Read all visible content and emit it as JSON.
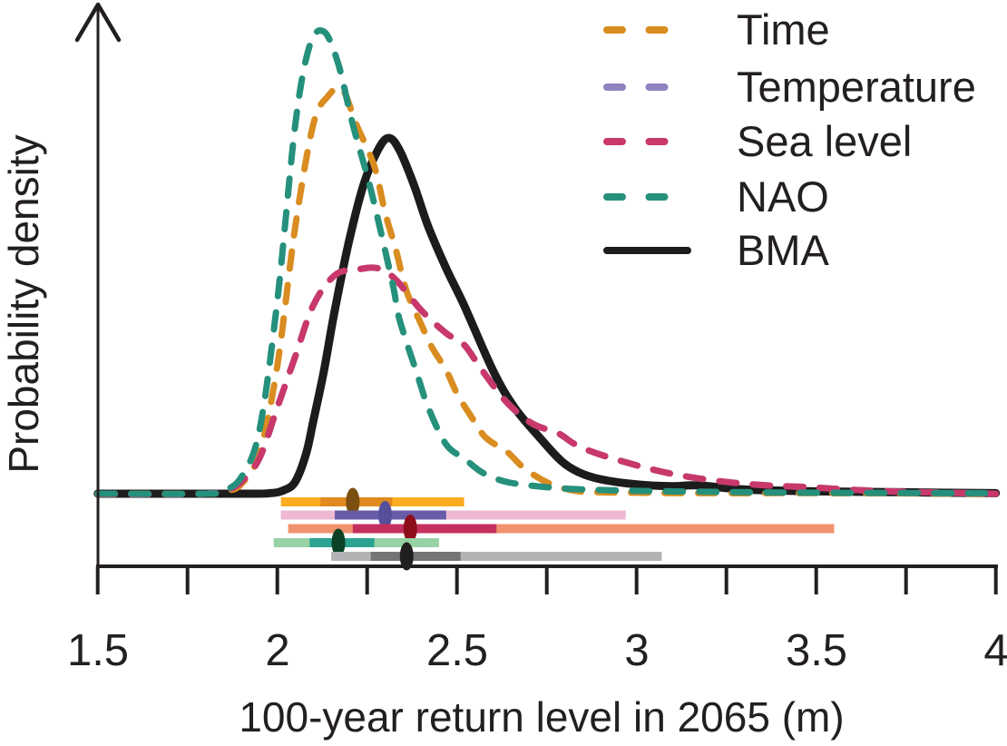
{
  "figure": {
    "title": "",
    "xlabel": "100-year return level in 2065 (m)",
    "ylabel": "Probability density",
    "x_tick_labels": [
      "1.5",
      "2",
      "2.5",
      "3",
      "3.5",
      "4"
    ]
  },
  "legend": {
    "position": "top-right",
    "items": [
      {
        "label": "Time",
        "color": "#D98C20",
        "style": "dashed"
      },
      {
        "label": "Temperature",
        "color": "#9083BF",
        "style": "dashed"
      },
      {
        "label": "Sea level",
        "color": "#C8386B",
        "style": "dashed"
      },
      {
        "label": "NAO",
        "color": "#25907C",
        "style": "dashed"
      },
      {
        "label": "BMA",
        "color": "#1C1C1C",
        "style": "solid"
      }
    ]
  },
  "chart_data": {
    "type": "line",
    "title": "",
    "xlabel": "100-year return level in 2065 (m)",
    "ylabel": "Probability density",
    "xlim": [
      1.5,
      4.0
    ],
    "x_major_ticks": [
      1.5,
      2.0,
      2.5,
      3.0,
      3.5,
      4.0
    ],
    "x_minor_tick_step": 0.25,
    "y_axis_style": "unlabeled arrow axis, densities normalized to tallest peak = 1",
    "grid": false,
    "legend_position": "top-right inside plot",
    "draw_order": [
      "BMA",
      "Time",
      "Temperature",
      "Sea level",
      "NAO"
    ],
    "series": [
      {
        "name": "Time",
        "color": "#D98C20",
        "line_style": "dashed",
        "hidden": false,
        "points": [
          [
            1.5,
            0.004
          ],
          [
            1.8,
            0.004
          ],
          [
            1.86,
            0.01
          ],
          [
            1.9,
            0.025
          ],
          [
            1.95,
            0.09
          ],
          [
            2.0,
            0.28
          ],
          [
            2.05,
            0.58
          ],
          [
            2.1,
            0.8
          ],
          [
            2.14,
            0.86
          ],
          [
            2.18,
            0.877
          ],
          [
            2.22,
            0.8
          ],
          [
            2.27,
            0.71
          ],
          [
            2.3,
            0.61
          ],
          [
            2.33,
            0.53
          ],
          [
            2.36,
            0.44
          ],
          [
            2.4,
            0.37
          ],
          [
            2.43,
            0.32
          ],
          [
            2.47,
            0.27
          ],
          [
            2.5,
            0.22
          ],
          [
            2.54,
            0.17
          ],
          [
            2.58,
            0.125
          ],
          [
            2.64,
            0.094
          ],
          [
            2.69,
            0.057
          ],
          [
            2.76,
            0.025
          ],
          [
            2.83,
            0.01
          ],
          [
            2.9,
            0.007
          ],
          [
            3.0,
            0.006
          ],
          [
            3.2,
            0.005
          ],
          [
            3.5,
            0.005
          ],
          [
            4.0,
            0.004
          ]
        ]
      },
      {
        "name": "Temperature",
        "color": "#9083BF",
        "line_style": "dashed",
        "hidden": true,
        "points": [
          [
            1.5,
            0.003
          ],
          [
            1.8,
            0.004
          ],
          [
            1.86,
            0.012
          ],
          [
            1.9,
            0.03
          ],
          [
            1.95,
            0.08
          ],
          [
            2.0,
            0.19
          ],
          [
            2.05,
            0.3
          ],
          [
            2.1,
            0.41
          ],
          [
            2.16,
            0.475
          ],
          [
            2.22,
            0.487
          ],
          [
            2.28,
            0.49
          ],
          [
            2.33,
            0.465
          ],
          [
            2.4,
            0.4
          ],
          [
            2.47,
            0.35
          ],
          [
            2.52,
            0.325
          ],
          [
            2.57,
            0.27
          ],
          [
            2.64,
            0.2
          ],
          [
            2.71,
            0.155
          ],
          [
            2.78,
            0.135
          ],
          [
            2.83,
            0.11
          ],
          [
            2.9,
            0.088
          ],
          [
            3.02,
            0.061
          ],
          [
            3.11,
            0.045
          ],
          [
            3.23,
            0.031
          ],
          [
            3.36,
            0.022
          ],
          [
            3.48,
            0.018
          ],
          [
            3.61,
            0.012
          ],
          [
            3.74,
            0.008
          ],
          [
            3.86,
            0.006
          ],
          [
            4.0,
            0.004
          ]
        ]
      },
      {
        "name": "Sea level",
        "color": "#C8386B",
        "line_style": "dashed",
        "hidden": false,
        "points": [
          [
            1.5,
            0.003
          ],
          [
            1.8,
            0.004
          ],
          [
            1.86,
            0.012
          ],
          [
            1.9,
            0.03
          ],
          [
            1.95,
            0.08
          ],
          [
            2.0,
            0.19
          ],
          [
            2.05,
            0.3
          ],
          [
            2.1,
            0.41
          ],
          [
            2.16,
            0.475
          ],
          [
            2.22,
            0.487
          ],
          [
            2.28,
            0.49
          ],
          [
            2.33,
            0.465
          ],
          [
            2.4,
            0.4
          ],
          [
            2.47,
            0.35
          ],
          [
            2.52,
            0.325
          ],
          [
            2.57,
            0.27
          ],
          [
            2.64,
            0.2
          ],
          [
            2.71,
            0.155
          ],
          [
            2.78,
            0.135
          ],
          [
            2.83,
            0.11
          ],
          [
            2.9,
            0.088
          ],
          [
            3.02,
            0.061
          ],
          [
            3.11,
            0.045
          ],
          [
            3.23,
            0.031
          ],
          [
            3.36,
            0.022
          ],
          [
            3.48,
            0.018
          ],
          [
            3.61,
            0.012
          ],
          [
            3.74,
            0.008
          ],
          [
            3.86,
            0.006
          ],
          [
            4.0,
            0.004
          ]
        ]
      },
      {
        "name": "NAO",
        "color": "#25907C",
        "line_style": "dashed",
        "hidden": false,
        "points": [
          [
            1.5,
            0.004
          ],
          [
            1.8,
            0.004
          ],
          [
            1.85,
            0.01
          ],
          [
            1.9,
            0.04
          ],
          [
            1.95,
            0.14
          ],
          [
            2.0,
            0.42
          ],
          [
            2.05,
            0.8
          ],
          [
            2.09,
            0.97
          ],
          [
            2.13,
            1.0
          ],
          [
            2.17,
            0.93
          ],
          [
            2.21,
            0.8
          ],
          [
            2.26,
            0.66
          ],
          [
            2.32,
            0.46
          ],
          [
            2.34,
            0.38
          ],
          [
            2.39,
            0.26
          ],
          [
            2.42,
            0.19
          ],
          [
            2.47,
            0.11
          ],
          [
            2.52,
            0.08
          ],
          [
            2.57,
            0.05
          ],
          [
            2.63,
            0.031
          ],
          [
            2.7,
            0.022
          ],
          [
            2.8,
            0.015
          ],
          [
            2.9,
            0.012
          ],
          [
            3.0,
            0.01
          ],
          [
            3.2,
            0.008
          ],
          [
            3.5,
            0.006
          ],
          [
            4.0,
            0.005
          ]
        ]
      },
      {
        "name": "BMA",
        "color": "#1C1C1C",
        "line_style": "solid",
        "hidden": false,
        "points": [
          [
            1.5,
            0.004
          ],
          [
            1.9,
            0.004
          ],
          [
            1.98,
            0.005
          ],
          [
            2.02,
            0.012
          ],
          [
            2.05,
            0.03
          ],
          [
            2.08,
            0.09
          ],
          [
            2.1,
            0.16
          ],
          [
            2.13,
            0.27
          ],
          [
            2.16,
            0.4
          ],
          [
            2.2,
            0.55
          ],
          [
            2.24,
            0.67
          ],
          [
            2.28,
            0.745
          ],
          [
            2.31,
            0.771
          ],
          [
            2.34,
            0.745
          ],
          [
            2.38,
            0.67
          ],
          [
            2.42,
            0.58
          ],
          [
            2.47,
            0.49
          ],
          [
            2.52,
            0.41
          ],
          [
            2.6,
            0.27
          ],
          [
            2.66,
            0.19
          ],
          [
            2.73,
            0.125
          ],
          [
            2.79,
            0.075
          ],
          [
            2.84,
            0.05
          ],
          [
            2.9,
            0.035
          ],
          [
            3.0,
            0.024
          ],
          [
            3.1,
            0.02
          ],
          [
            3.17,
            0.022
          ],
          [
            3.3,
            0.013
          ],
          [
            3.5,
            0.009
          ],
          [
            3.75,
            0.007
          ],
          [
            4.0,
            0.005
          ]
        ]
      }
    ],
    "interval_bars": [
      {
        "name": "Time",
        "outer": [
          2.01,
          2.52
        ],
        "inner": [
          2.12,
          2.32
        ],
        "median": 2.21,
        "outer_color": "#FBAD22",
        "inner_color": "#E08A1F",
        "dot_color": "#7A4F10"
      },
      {
        "name": "Temperature",
        "outer": [
          2.01,
          2.97
        ],
        "inner": [
          2.16,
          2.47
        ],
        "median": 2.3,
        "outer_color": "#EFB9D4",
        "inner_color": "#685CA8",
        "dot_color": "#56founded"
      },
      {
        "name": "Sea level",
        "outer": [
          2.03,
          3.55
        ],
        "inner": [
          2.21,
          2.61
        ],
        "median": 2.37,
        "outer_color": "#F0926E",
        "inner_color": "#C42F5D",
        "dot_color": "#8E0E1C"
      },
      {
        "name": "NAO",
        "outer": [
          1.99,
          2.45
        ],
        "inner": [
          2.09,
          2.27
        ],
        "median": 2.17,
        "outer_color": "#97D2A5",
        "inner_color": "#2AA392",
        "dot_color": "#0B4226"
      },
      {
        "name": "BMA",
        "outer": [
          2.15,
          3.07
        ],
        "inner": [
          2.26,
          2.51
        ],
        "median": 2.36,
        "outer_color": "#B3B3B6",
        "inner_color": "#757578",
        "dot_color": "#1F1F1F"
      }
    ]
  }
}
